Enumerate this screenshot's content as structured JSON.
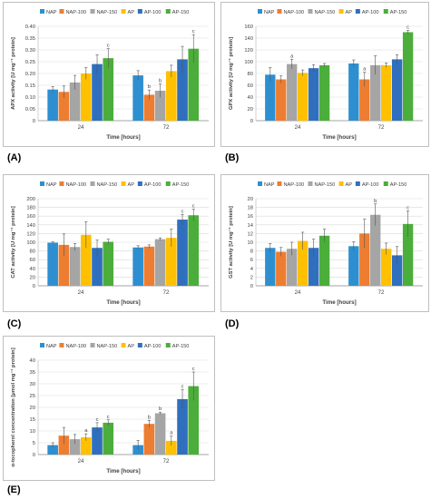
{
  "colors": {
    "NAP": "#2e8fd0",
    "NAP-100": "#ed7d31",
    "NAP-150": "#a5a5a5",
    "AP": "#ffc000",
    "AP-100": "#2f6fbe",
    "AP-150": "#4cae3a"
  },
  "panels": [
    {
      "label": "(A)",
      "chart_data": {
        "type": "bar",
        "categories": [
          "24",
          "72"
        ],
        "xlabel": "Time [hours]",
        "ylabel": "APX activity [U mg⁻¹ protein]",
        "ylim": [
          0,
          0.4
        ],
        "yticks": [
          "0",
          "0.05",
          "0.10",
          "0.15",
          "0.20",
          "0.25",
          "0.30",
          "0.35",
          "0.40"
        ],
        "legend": "top",
        "series": [
          {
            "name": "NAP",
            "values": [
              0.132,
              0.192
            ],
            "errors": [
              0.012,
              0.02
            ],
            "labels": [
              "",
              ""
            ]
          },
          {
            "name": "NAP-100",
            "values": [
              0.122,
              0.11
            ],
            "errors": [
              0.025,
              0.02
            ],
            "labels": [
              "",
              "b"
            ]
          },
          {
            "name": "NAP-150",
            "values": [
              0.162,
              0.127
            ],
            "errors": [
              0.03,
              0.028
            ],
            "labels": [
              "",
              "b"
            ]
          },
          {
            "name": "AP",
            "values": [
              0.2,
              0.21
            ],
            "errors": [
              0.025,
              0.025
            ],
            "labels": [
              "",
              ""
            ]
          },
          {
            "name": "AP-100",
            "values": [
              0.24,
              0.26
            ],
            "errors": [
              0.04,
              0.055
            ],
            "labels": [
              "",
              ""
            ]
          },
          {
            "name": "AP-150",
            "values": [
              0.265,
              0.305
            ],
            "errors": [
              0.04,
              0.06
            ],
            "labels": [
              "c",
              "c"
            ]
          }
        ]
      }
    },
    {
      "label": "(B)",
      "chart_data": {
        "type": "bar",
        "categories": [
          "24",
          "72"
        ],
        "xlabel": "Time [hours]",
        "ylabel": "GPX activity [U mg⁻¹ protein]",
        "ylim": [
          0,
          160
        ],
        "yticks": [
          "0",
          "20",
          "40",
          "60",
          "80",
          "100",
          "120",
          "140",
          "160"
        ],
        "legend": "top",
        "series": [
          {
            "name": "NAP",
            "values": [
              78,
              97
            ],
            "errors": [
              12,
              6
            ],
            "labels": [
              "",
              ""
            ]
          },
          {
            "name": "NAP-100",
            "values": [
              70,
              70
            ],
            "errors": [
              6,
              12
            ],
            "labels": [
              "",
              "a"
            ]
          },
          {
            "name": "NAP-150",
            "values": [
              96,
              94
            ],
            "errors": [
              8,
              16
            ],
            "labels": [
              "a",
              ""
            ]
          },
          {
            "name": "AP",
            "values": [
              81,
              94
            ],
            "errors": [
              5,
              4
            ],
            "labels": [
              "",
              ""
            ]
          },
          {
            "name": "AP-100",
            "values": [
              89,
              104
            ],
            "errors": [
              6,
              8
            ],
            "labels": [
              "",
              ""
            ]
          },
          {
            "name": "AP-150",
            "values": [
              94,
              150
            ],
            "errors": [
              3,
              3
            ],
            "labels": [
              "",
              "c"
            ]
          }
        ]
      }
    },
    {
      "label": "(C)",
      "chart_data": {
        "type": "bar",
        "categories": [
          "24",
          "72"
        ],
        "xlabel": "Time [hours]",
        "ylabel": "CAT activity [U mg⁻¹ protein]",
        "ylim": [
          0,
          200
        ],
        "yticks": [
          "0",
          "20",
          "40",
          "60",
          "80",
          "100",
          "120",
          "140",
          "160",
          "180",
          "200"
        ],
        "legend": "top",
        "series": [
          {
            "name": "NAP",
            "values": [
              99,
              88
            ],
            "errors": [
              2,
              4
            ],
            "labels": [
              "",
              ""
            ]
          },
          {
            "name": "NAP-100",
            "values": [
              94,
              90
            ],
            "errors": [
              25,
              4
            ],
            "labels": [
              "",
              ""
            ]
          },
          {
            "name": "NAP-150",
            "values": [
              89,
              107
            ],
            "errors": [
              8,
              3
            ],
            "labels": [
              "",
              ""
            ]
          },
          {
            "name": "AP",
            "values": [
              117,
              110
            ],
            "errors": [
              30,
              20
            ],
            "labels": [
              "",
              ""
            ]
          },
          {
            "name": "AP-100",
            "values": [
              87,
              152
            ],
            "errors": [
              18,
              12
            ],
            "labels": [
              "",
              "c"
            ]
          },
          {
            "name": "AP-150",
            "values": [
              101,
              162
            ],
            "errors": [
              6,
              14
            ],
            "labels": [
              "",
              "c"
            ]
          }
        ]
      }
    },
    {
      "label": "(D)",
      "chart_data": {
        "type": "bar",
        "categories": [
          "24",
          "72"
        ],
        "xlabel": "Time [hours]",
        "ylabel": "GST activity [U mg⁻¹ protein]",
        "ylim": [
          0,
          20
        ],
        "yticks": [
          "0",
          "2",
          "4",
          "6",
          "8",
          "10",
          "12",
          "14",
          "16",
          "18",
          "20"
        ],
        "legend": "top",
        "series": [
          {
            "name": "NAP",
            "values": [
              8.7,
              9.1
            ],
            "errors": [
              1,
              1
            ],
            "labels": [
              "",
              ""
            ]
          },
          {
            "name": "NAP-100",
            "values": [
              7.8,
              12.0
            ],
            "errors": [
              1,
              3.3
            ],
            "labels": [
              "",
              ""
            ]
          },
          {
            "name": "NAP-150",
            "values": [
              8.5,
              16.3
            ],
            "errors": [
              1.5,
              2.5
            ],
            "labels": [
              "",
              "b"
            ]
          },
          {
            "name": "AP",
            "values": [
              10.3,
              8.5
            ],
            "errors": [
              2,
              1.3
            ],
            "labels": [
              "",
              ""
            ]
          },
          {
            "name": "AP-100",
            "values": [
              8.7,
              7.0
            ],
            "errors": [
              2,
              2
            ],
            "labels": [
              "",
              ""
            ]
          },
          {
            "name": "AP-150",
            "values": [
              11.5,
              14.2
            ],
            "errors": [
              1.5,
              3
            ],
            "labels": [
              "",
              "c"
            ]
          }
        ]
      }
    },
    {
      "label": "(E)",
      "chart_data": {
        "type": "bar",
        "categories": [
          "24",
          "72"
        ],
        "xlabel": "Time [hours]",
        "ylabel": "α-tocopherol concentration [μmol mg⁻¹ protein]",
        "ylim": [
          0,
          40
        ],
        "yticks": [
          "0",
          "5",
          "10",
          "15",
          "20",
          "25",
          "30",
          "35",
          "40"
        ],
        "legend": "top",
        "series": [
          {
            "name": "NAP",
            "values": [
              4,
              4
            ],
            "errors": [
              1,
              2
            ],
            "labels": [
              "",
              ""
            ]
          },
          {
            "name": "NAP-100",
            "values": [
              8,
              13
            ],
            "errors": [
              3.5,
              1.5
            ],
            "labels": [
              "",
              "b"
            ]
          },
          {
            "name": "NAP-150",
            "values": [
              6.5,
              17.5
            ],
            "errors": [
              2,
              0.5
            ],
            "labels": [
              "",
              "b"
            ]
          },
          {
            "name": "AP",
            "values": [
              7.3,
              5.8
            ],
            "errors": [
              1.5,
              2
            ],
            "labels": [
              "a",
              "a"
            ]
          },
          {
            "name": "AP-100",
            "values": [
              11.5,
              23.5
            ],
            "errors": [
              2,
              4
            ],
            "labels": [
              "c",
              "c"
            ]
          },
          {
            "name": "AP-150",
            "values": [
              13.5,
              29
            ],
            "errors": [
              1.2,
              6
            ],
            "labels": [
              "c",
              "c"
            ]
          }
        ]
      }
    }
  ]
}
